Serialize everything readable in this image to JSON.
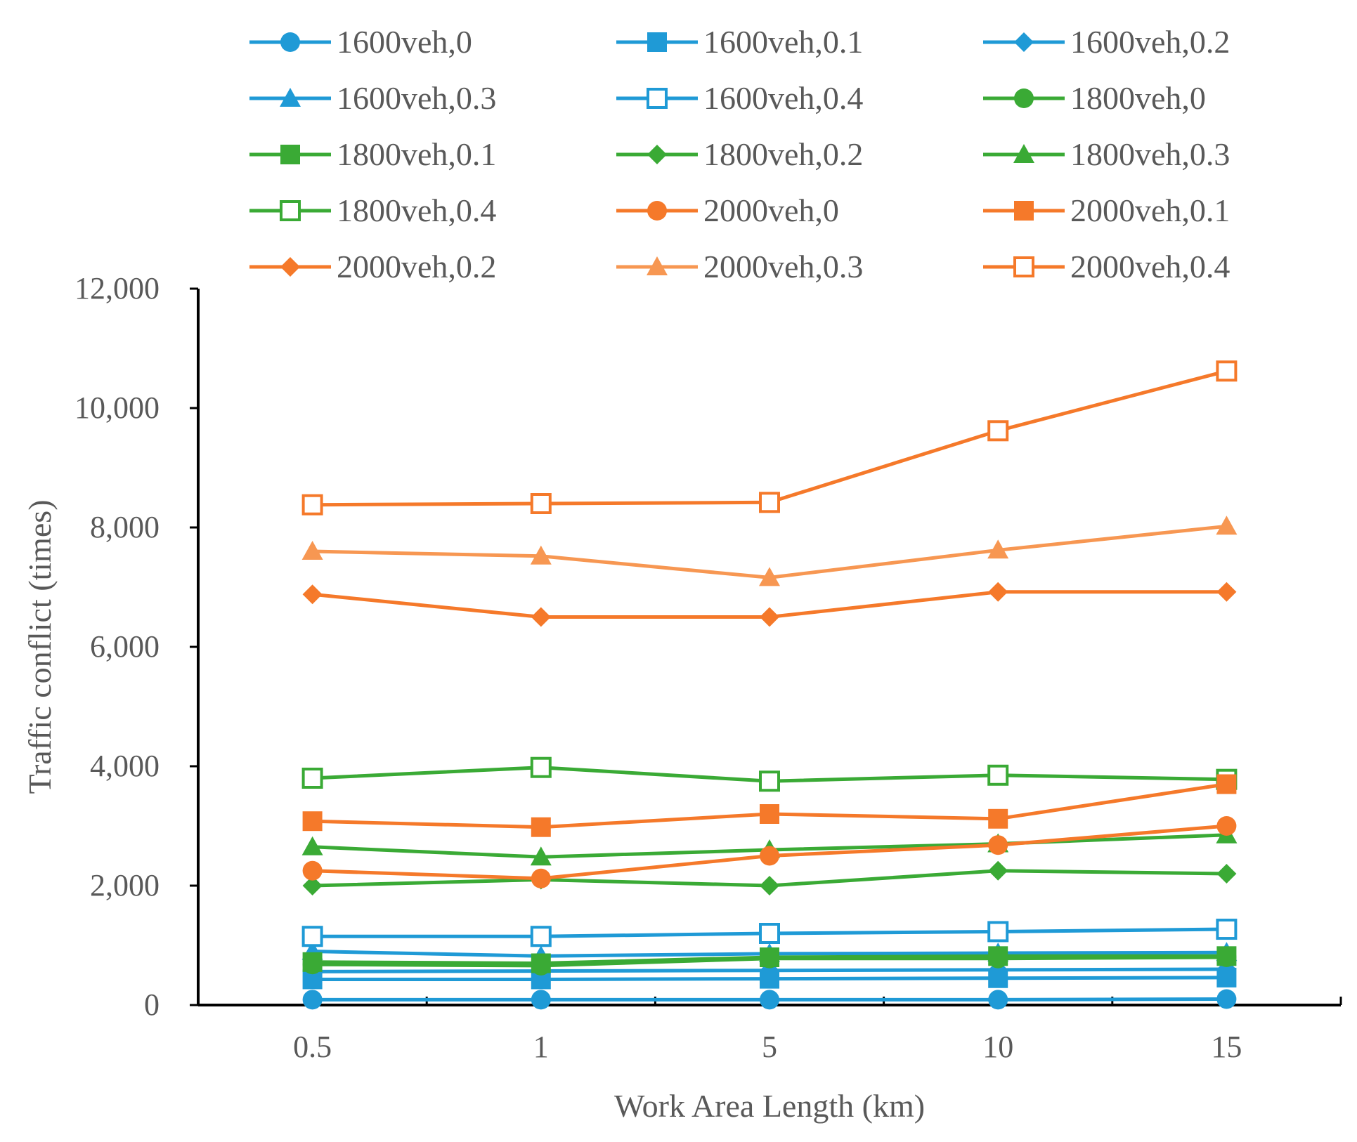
{
  "chart_data": {
    "type": "line",
    "title": "",
    "xlabel": "Work Area Length (km)",
    "ylabel": "Traffic conflict (times)",
    "categories": [
      "0.5",
      "1",
      "5",
      "10",
      "15"
    ],
    "ylim": [
      0,
      12000
    ],
    "yticks": [
      0,
      2000,
      4000,
      6000,
      8000,
      10000,
      12000
    ],
    "ytick_labels": [
      "0",
      "2,000",
      "4,000",
      "6,000",
      "8,000",
      "10,000",
      "12,000"
    ],
    "grid": false,
    "legend_position": "top",
    "series": [
      {
        "name": "1600veh,0",
        "color": "#1f9ad6",
        "marker": "circle",
        "values": [
          90,
          90,
          90,
          90,
          100
        ]
      },
      {
        "name": "1600veh,0.1",
        "color": "#1f9ad6",
        "marker": "square",
        "values": [
          430,
          430,
          440,
          450,
          460
        ]
      },
      {
        "name": "1600veh,0.2",
        "color": "#1f9ad6",
        "marker": "diamond",
        "values": [
          560,
          570,
          580,
          590,
          600
        ]
      },
      {
        "name": "1600veh,0.3",
        "color": "#1f9ad6",
        "marker": "triangle",
        "values": [
          900,
          820,
          860,
          870,
          880
        ]
      },
      {
        "name": "1600veh,0.4",
        "color": "#1f9ad6",
        "marker": "open-square",
        "values": [
          1150,
          1150,
          1200,
          1230,
          1270
        ]
      },
      {
        "name": "1800veh,0",
        "color": "#3aaa35",
        "marker": "circle",
        "values": [
          680,
          660,
          780,
          780,
          800
        ]
      },
      {
        "name": "1800veh,0.1",
        "color": "#3aaa35",
        "marker": "square",
        "values": [
          720,
          700,
          800,
          820,
          820
        ]
      },
      {
        "name": "1800veh,0.2",
        "color": "#3aaa35",
        "marker": "diamond",
        "values": [
          2000,
          2100,
          2000,
          2250,
          2200
        ]
      },
      {
        "name": "1800veh,0.3",
        "color": "#3aaa35",
        "marker": "triangle",
        "values": [
          2650,
          2480,
          2600,
          2700,
          2850
        ]
      },
      {
        "name": "1800veh,0.4",
        "color": "#3aaa35",
        "marker": "open-square",
        "values": [
          3800,
          3980,
          3750,
          3850,
          3780
        ]
      },
      {
        "name": "2000veh,0",
        "color": "#f5792a",
        "marker": "circle",
        "values": [
          2250,
          2120,
          2500,
          2680,
          3000
        ]
      },
      {
        "name": "2000veh,0.1",
        "color": "#f5792a",
        "marker": "square",
        "values": [
          3080,
          2980,
          3200,
          3120,
          3700
        ]
      },
      {
        "name": "2000veh,0.2",
        "color": "#f5792a",
        "marker": "diamond",
        "values": [
          6880,
          6500,
          6500,
          6920,
          6920
        ]
      },
      {
        "name": "2000veh,0.3",
        "color": "#f79752",
        "marker": "triangle",
        "values": [
          7600,
          7520,
          7160,
          7620,
          8020
        ]
      },
      {
        "name": "2000veh,0.4",
        "color": "#f5792a",
        "marker": "open-square",
        "values": [
          8380,
          8400,
          8420,
          9620,
          10620
        ]
      }
    ]
  }
}
